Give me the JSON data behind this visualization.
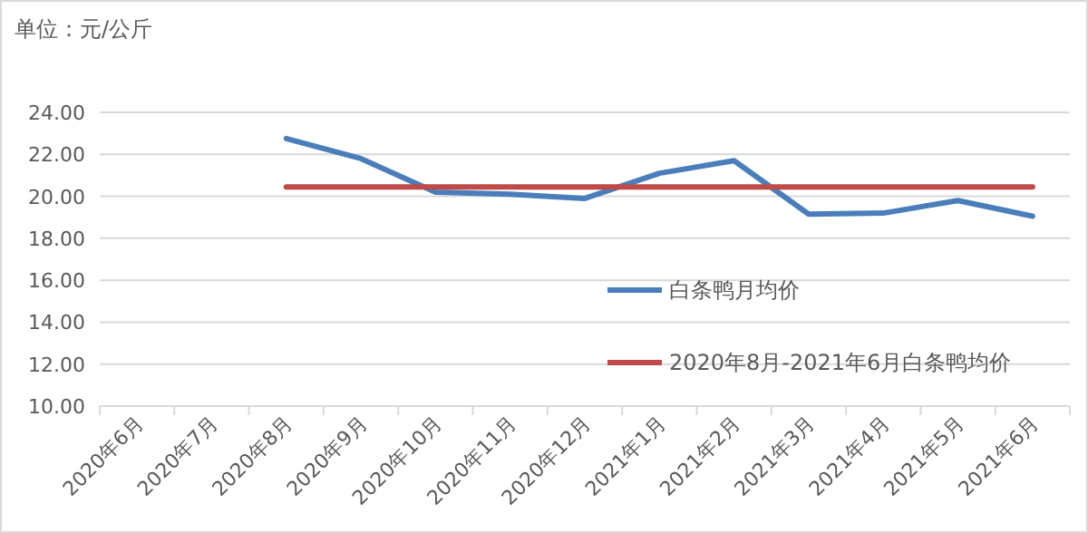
{
  "chart_data": {
    "type": "line",
    "ylabel": "单位：元/公斤",
    "categories": [
      "2020年6月",
      "2020年7月",
      "2020年8月",
      "2020年9月",
      "2020年10月",
      "2020年11月",
      "2020年12月",
      "2021年1月",
      "2021年2月",
      "2021年3月",
      "2021年4月",
      "2021年5月",
      "2021年6月"
    ],
    "series": [
      {
        "name": "白条鸭月均价",
        "color": "#4a7ebb",
        "values": [
          null,
          null,
          22.75,
          21.8,
          20.2,
          20.1,
          19.9,
          21.1,
          21.7,
          19.15,
          19.2,
          19.8,
          19.05
        ]
      },
      {
        "name": "2020年8月-2021年6月白条鸭均价",
        "color": "#be4b48",
        "values": [
          null,
          null,
          20.45,
          20.45,
          20.45,
          20.45,
          20.45,
          20.45,
          20.45,
          20.45,
          20.45,
          20.45,
          20.45
        ]
      }
    ],
    "ylim": [
      10,
      24
    ],
    "yticks": [
      {
        "value": 10,
        "label": "10.00"
      },
      {
        "value": 12,
        "label": "12.00"
      },
      {
        "value": 14,
        "label": "14.00"
      },
      {
        "value": 16,
        "label": "16.00"
      },
      {
        "value": 18,
        "label": "18.00"
      },
      {
        "value": 20,
        "label": "20.00"
      },
      {
        "value": 22,
        "label": "22.00"
      },
      {
        "value": 24,
        "label": "24.00"
      }
    ],
    "grid": "y",
    "legend": "right",
    "marker": "none",
    "line_style": "solid"
  }
}
